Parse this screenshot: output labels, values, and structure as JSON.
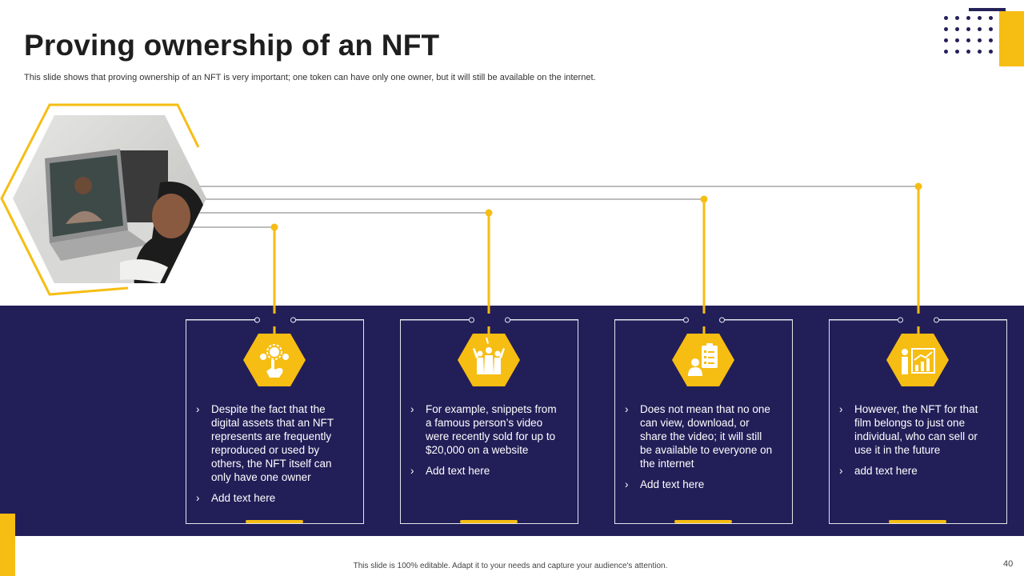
{
  "slide": {
    "title": "Proving ownership of an NFT",
    "subtitle": "This slide shows that proving ownership of an NFT is very important; one token can have only one owner, but it will still be available on the internet.",
    "footer": "This slide is 100% editable. Adapt it to your needs and capture your audience's attention.",
    "page_number": "40"
  },
  "colors": {
    "accent": "#f6bd13",
    "navy": "#221e58",
    "text_dark": "#1e1e1e"
  },
  "cards": [
    {
      "icon": "gear-hand-icon",
      "items": [
        "Despite the fact that the digital assets that an NFT represents are frequently reproduced or used by others, the NFT itself can only have one owner",
        "Add text here"
      ]
    },
    {
      "icon": "crowd-icon",
      "items": [
        "For example, snippets from a famous person’s video were recently sold for up to $20,000 on a website",
        "Add text here"
      ]
    },
    {
      "icon": "checklist-person-icon",
      "items": [
        "Does not mean that no one can view, download, or share the video; it will still be available to everyone on the internet",
        "Add text here"
      ]
    },
    {
      "icon": "presenter-chart-icon",
      "items": [
        "However, the NFT for that film belongs to just one individual, who can sell or use it in the future",
        "add text here"
      ]
    }
  ]
}
